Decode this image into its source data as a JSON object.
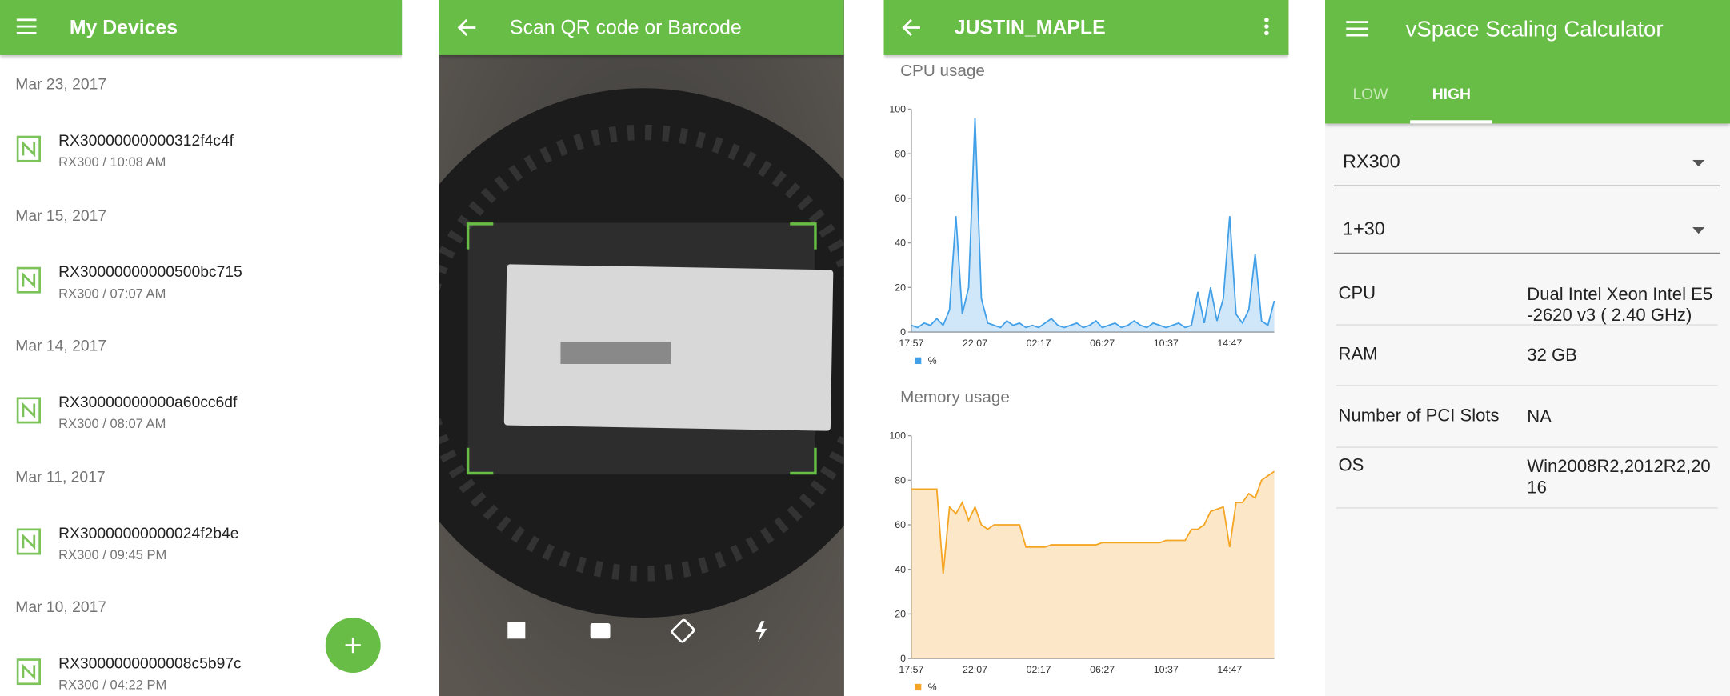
{
  "devices": {
    "title": "My Devices",
    "groups": [
      {
        "date": "Mar 23, 2017",
        "name": "RX30000000000312f4c4f",
        "detail": "RX300 / 10:08 AM"
      },
      {
        "date": "Mar 15, 2017",
        "name": "RX30000000000500bc715",
        "detail": "RX300 / 07:07 AM"
      },
      {
        "date": "Mar 14, 2017",
        "name": "RX30000000000a60cc6df",
        "detail": "RX300 / 08:07 AM"
      },
      {
        "date": "Mar 11, 2017",
        "name": "RX30000000000024f2b4e",
        "detail": "RX300 / 09:45 PM"
      },
      {
        "date": "Mar 10, 2017",
        "name": "RX3000000000008c5b97c",
        "detail": "RX300 / 04:22 PM"
      }
    ]
  },
  "scanner": {
    "title": "Scan QR code or Barcode"
  },
  "monitor": {
    "title": "JUSTIN_MAPLE"
  },
  "calculator": {
    "title": "vSpace Scaling Calculator",
    "tabs": [
      "LOW",
      "HIGH"
    ],
    "selects": [
      "RX300",
      "1+30"
    ],
    "rows": [
      [
        "CPU",
        "Dual Intel Xeon Intel E5-2620 v3 ( 2.40 GHz)"
      ],
      [
        "RAM",
        "32 GB"
      ],
      [
        "Number of PCI Slots",
        "NA"
      ],
      [
        "OS",
        "Win2008R2,2012R2,2016"
      ]
    ]
  },
  "chart_data": [
    {
      "type": "line",
      "title": "CPU usage",
      "categories": [
        "17:57",
        null,
        null,
        null,
        null,
        null,
        null,
        null,
        null,
        null,
        "22:07",
        null,
        null,
        null,
        null,
        null,
        null,
        null,
        null,
        null,
        "02:17",
        null,
        null,
        null,
        null,
        null,
        null,
        null,
        null,
        null,
        "06:27",
        null,
        null,
        null,
        null,
        null,
        null,
        null,
        null,
        null,
        "10:37",
        null,
        null,
        null,
        null,
        null,
        null,
        null,
        null,
        null,
        "14:47",
        null,
        null,
        null,
        null,
        null,
        null,
        null
      ],
      "series": [
        {
          "name": "%",
          "color": "#42a0e8",
          "values": [
            3,
            2,
            4,
            3,
            6,
            3,
            10,
            52,
            8,
            20,
            96,
            15,
            4,
            3,
            2,
            5,
            3,
            4,
            2,
            3,
            2,
            4,
            6,
            3,
            2,
            3,
            4,
            2,
            3,
            5,
            2,
            3,
            4,
            2,
            3,
            5,
            3,
            2,
            4,
            3,
            2,
            3,
            4,
            2,
            3,
            18,
            4,
            20,
            5,
            15,
            52,
            8,
            4,
            10,
            35,
            5,
            3,
            14
          ]
        }
      ],
      "ylim": [
        0,
        100
      ],
      "yticks": [
        0,
        20,
        40,
        60,
        80,
        100
      ],
      "area": true,
      "legend": "bottom-left"
    },
    {
      "type": "line",
      "title": "Memory usage",
      "categories": [
        "17:57",
        null,
        null,
        null,
        null,
        null,
        null,
        null,
        null,
        null,
        "22:07",
        null,
        null,
        null,
        null,
        null,
        null,
        null,
        null,
        null,
        "02:17",
        null,
        null,
        null,
        null,
        null,
        null,
        null,
        null,
        null,
        "06:27",
        null,
        null,
        null,
        null,
        null,
        null,
        null,
        null,
        null,
        "10:37",
        null,
        null,
        null,
        null,
        null,
        null,
        null,
        null,
        null,
        "14:47",
        null,
        null,
        null,
        null,
        null,
        null,
        null
      ],
      "series": [
        {
          "name": "%",
          "color": "#f5a524",
          "values": [
            76,
            76,
            76,
            76,
            76,
            38,
            68,
            65,
            70,
            62,
            68,
            60,
            58,
            60,
            60,
            60,
            60,
            60,
            50,
            50,
            50,
            50,
            51,
            51,
            51,
            51,
            51,
            51,
            51,
            51,
            52,
            52,
            52,
            52,
            52,
            52,
            52,
            52,
            52,
            52,
            53,
            53,
            53,
            53,
            58,
            58,
            60,
            66,
            67,
            68,
            50,
            70,
            70,
            74,
            72,
            80,
            82,
            84
          ]
        }
      ],
      "ylim": [
        0,
        100
      ],
      "yticks": [
        0,
        20,
        40,
        60,
        80,
        100
      ],
      "area": true,
      "legend": "bottom-left"
    }
  ]
}
